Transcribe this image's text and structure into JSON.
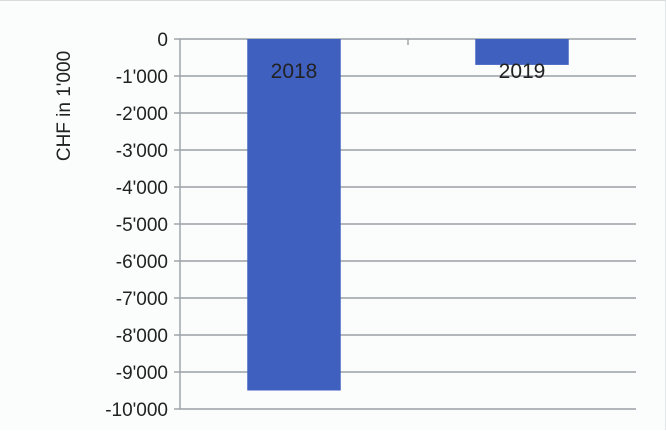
{
  "chart_data": {
    "type": "bar",
    "categories": [
      "2018",
      "2019"
    ],
    "values": [
      -9500,
      -700
    ],
    "ylabel": "CHF in 1'000",
    "ylim": [
      -10000,
      0
    ],
    "yticks": [
      0,
      -1000,
      -2000,
      -3000,
      -4000,
      -5000,
      -6000,
      -7000,
      -8000,
      -9000,
      -10000
    ],
    "ytick_labels": [
      "0",
      "-1'000",
      "-2'000",
      "-3'000",
      "-4'000",
      "-5'000",
      "-6'000",
      "-7'000",
      "-8'000",
      "-9'000",
      "-10'000"
    ],
    "data_labels": [
      "2018",
      "2019"
    ],
    "grid": true,
    "bar_color": "#4060c0",
    "grid_color": "#9aa0a6"
  }
}
